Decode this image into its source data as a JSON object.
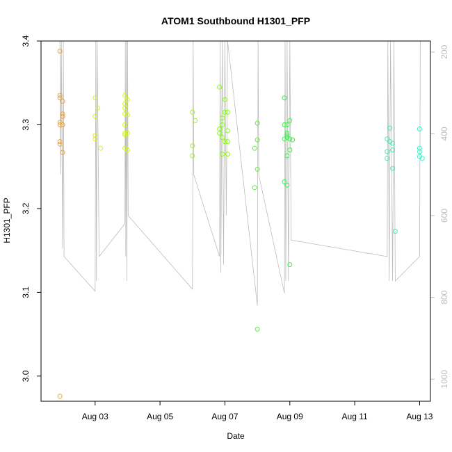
{
  "chart_data": {
    "type": "scatter",
    "title": "ATOM1 Southbound H1301_PFP",
    "xlabel": "Date",
    "ylabel": "H1301_PFP",
    "x_unit": "date",
    "xlim": [
      "2016-08-01T08:00",
      "2016-08-13T08:00"
    ],
    "ylim": [
      2.97,
      3.4
    ],
    "x_ticks": [
      {
        "date": "2016-08-03",
        "label": "Aug 03"
      },
      {
        "date": "2016-08-05",
        "label": "Aug 05"
      },
      {
        "date": "2016-08-07",
        "label": "Aug 07"
      },
      {
        "date": "2016-08-09",
        "label": "Aug 09"
      },
      {
        "date": "2016-08-11",
        "label": "Aug 11"
      },
      {
        "date": "2016-08-13",
        "label": "Aug 13"
      }
    ],
    "y_ticks": [
      3.0,
      3.1,
      3.2,
      3.3,
      3.4
    ],
    "y2_ticks": [
      200,
      400,
      600,
      800,
      1000
    ],
    "y2lim": [
      173,
      1054
    ],
    "grid": false,
    "points": [
      {
        "x": "2016-08-01T22:00",
        "y": 3.388,
        "color": "#e6a23c"
      },
      {
        "x": "2016-08-01T22:00",
        "y": 3.335,
        "color": "#e6a23c"
      },
      {
        "x": "2016-08-01T22:00",
        "y": 3.332,
        "color": "#e6a23c"
      },
      {
        "x": "2016-08-01T22:00",
        "y": 3.303,
        "color": "#e6a23c"
      },
      {
        "x": "2016-08-01T22:00",
        "y": 3.3,
        "color": "#e6a23c"
      },
      {
        "x": "2016-08-01T22:00",
        "y": 3.28,
        "color": "#e6a23c"
      },
      {
        "x": "2016-08-01T22:00",
        "y": 3.277,
        "color": "#e6a23c"
      },
      {
        "x": "2016-08-01T22:00",
        "y": 2.976,
        "color": "#e6a23c"
      },
      {
        "x": "2016-08-02T00:00",
        "y": 3.328,
        "color": "#e6a23c"
      },
      {
        "x": "2016-08-02T00:00",
        "y": 3.313,
        "color": "#e6a23c"
      },
      {
        "x": "2016-08-02T00:00",
        "y": 3.31,
        "color": "#e6a23c"
      },
      {
        "x": "2016-08-02T00:00",
        "y": 3.3,
        "color": "#e6a23c"
      },
      {
        "x": "2016-08-02T00:00",
        "y": 3.267,
        "color": "#e6a23c"
      },
      {
        "x": "2016-08-03T00:00",
        "y": 3.332,
        "color": "#e0ea2a"
      },
      {
        "x": "2016-08-03T02:00",
        "y": 3.32,
        "color": "#e0ea2a"
      },
      {
        "x": "2016-08-03T00:00",
        "y": 3.31,
        "color": "#e0ea2a"
      },
      {
        "x": "2016-08-03T00:00",
        "y": 3.287,
        "color": "#e0ea2a"
      },
      {
        "x": "2016-08-03T00:00",
        "y": 3.283,
        "color": "#e0ea2a"
      },
      {
        "x": "2016-08-03T04:00",
        "y": 3.272,
        "color": "#e0ea2a"
      },
      {
        "x": "2016-08-03T22:00",
        "y": 3.335,
        "color": "#d6f22a"
      },
      {
        "x": "2016-08-03T22:00",
        "y": 3.325,
        "color": "#d6f22a"
      },
      {
        "x": "2016-08-03T22:00",
        "y": 3.32,
        "color": "#d6f22a"
      },
      {
        "x": "2016-08-03T22:00",
        "y": 3.313,
        "color": "#d6f22a"
      },
      {
        "x": "2016-08-03T22:00",
        "y": 3.3,
        "color": "#d6f22a"
      },
      {
        "x": "2016-08-03T22:00",
        "y": 3.29,
        "color": "#d6f22a"
      },
      {
        "x": "2016-08-03T22:00",
        "y": 3.288,
        "color": "#d6f22a"
      },
      {
        "x": "2016-08-03T22:00",
        "y": 3.272,
        "color": "#d6f22a"
      },
      {
        "x": "2016-08-04T00:00",
        "y": 3.33,
        "color": "#d6f22a"
      },
      {
        "x": "2016-08-04T00:00",
        "y": 3.312,
        "color": "#d6f22a"
      },
      {
        "x": "2016-08-04T00:00",
        "y": 3.29,
        "color": "#d6f22a"
      },
      {
        "x": "2016-08-04T00:00",
        "y": 3.27,
        "color": "#d6f22a"
      },
      {
        "x": "2016-08-06T00:00",
        "y": 3.315,
        "color": "#9cf22a"
      },
      {
        "x": "2016-08-06T02:00",
        "y": 3.305,
        "color": "#9cf22a"
      },
      {
        "x": "2016-08-06T00:00",
        "y": 3.275,
        "color": "#9cf22a"
      },
      {
        "x": "2016-08-06T00:00",
        "y": 3.263,
        "color": "#9cf22a"
      },
      {
        "x": "2016-08-06T20:00",
        "y": 3.345,
        "color": "#8cf22a"
      },
      {
        "x": "2016-08-06T22:00",
        "y": 3.308,
        "color": "#8cf22a"
      },
      {
        "x": "2016-08-06T22:00",
        "y": 3.3,
        "color": "#8cf22a"
      },
      {
        "x": "2016-08-06T20:00",
        "y": 3.295,
        "color": "#8cf22a"
      },
      {
        "x": "2016-08-06T20:00",
        "y": 3.29,
        "color": "#8cf22a"
      },
      {
        "x": "2016-08-06T22:00",
        "y": 3.285,
        "color": "#8cf22a"
      },
      {
        "x": "2016-08-06T22:00",
        "y": 3.265,
        "color": "#8cf22a"
      },
      {
        "x": "2016-08-07T00:00",
        "y": 3.33,
        "color": "#8cf22a"
      },
      {
        "x": "2016-08-07T00:00",
        "y": 3.315,
        "color": "#8cf22a"
      },
      {
        "x": "2016-08-07T02:00",
        "y": 3.315,
        "color": "#8cf22a"
      },
      {
        "x": "2016-08-07T00:00",
        "y": 3.28,
        "color": "#8cf22a"
      },
      {
        "x": "2016-08-07T02:00",
        "y": 3.293,
        "color": "#8cf22a"
      },
      {
        "x": "2016-08-07T02:00",
        "y": 3.28,
        "color": "#8cf22a"
      },
      {
        "x": "2016-08-07T02:00",
        "y": 3.265,
        "color": "#8cf22a"
      },
      {
        "x": "2016-08-07T22:00",
        "y": 3.272,
        "color": "#5ef23a"
      },
      {
        "x": "2016-08-08T00:00",
        "y": 3.302,
        "color": "#5ef23a"
      },
      {
        "x": "2016-08-08T00:00",
        "y": 3.282,
        "color": "#5ef23a"
      },
      {
        "x": "2016-08-08T00:00",
        "y": 3.247,
        "color": "#5ef23a"
      },
      {
        "x": "2016-08-07T22:00",
        "y": 3.225,
        "color": "#5ef23a"
      },
      {
        "x": "2016-08-08T00:00",
        "y": 3.056,
        "color": "#5ef23a"
      },
      {
        "x": "2016-08-08T20:00",
        "y": 3.332,
        "color": "#3cf24a"
      },
      {
        "x": "2016-08-08T20:00",
        "y": 3.3,
        "color": "#3cf24a"
      },
      {
        "x": "2016-08-08T22:00",
        "y": 3.3,
        "color": "#3cf24a"
      },
      {
        "x": "2016-08-08T22:00",
        "y": 3.29,
        "color": "#3cf24a"
      },
      {
        "x": "2016-08-08T20:00",
        "y": 3.283,
        "color": "#3cf24a"
      },
      {
        "x": "2016-08-08T22:00",
        "y": 3.288,
        "color": "#3cf24a"
      },
      {
        "x": "2016-08-08T22:00",
        "y": 3.285,
        "color": "#3cf24a"
      },
      {
        "x": "2016-08-09T00:00",
        "y": 3.305,
        "color": "#3cf24a"
      },
      {
        "x": "2016-08-09T00:00",
        "y": 3.283,
        "color": "#3cf24a"
      },
      {
        "x": "2016-08-09T02:00",
        "y": 3.282,
        "color": "#3cf24a"
      },
      {
        "x": "2016-08-09T00:00",
        "y": 3.27,
        "color": "#3cf24a"
      },
      {
        "x": "2016-08-08T22:00",
        "y": 3.263,
        "color": "#3cf24a"
      },
      {
        "x": "2016-08-08T20:00",
        "y": 3.232,
        "color": "#3cf24a"
      },
      {
        "x": "2016-08-08T22:00",
        "y": 3.228,
        "color": "#3cf24a"
      },
      {
        "x": "2016-08-09T00:00",
        "y": 3.133,
        "color": "#3cf24a"
      },
      {
        "x": "2016-08-12T00:00",
        "y": 3.283,
        "color": "#3cf2a6"
      },
      {
        "x": "2016-08-12T02:00",
        "y": 3.296,
        "color": "#3cf2a6"
      },
      {
        "x": "2016-08-12T02:00",
        "y": 3.28,
        "color": "#3cf2a6"
      },
      {
        "x": "2016-08-12T04:00",
        "y": 3.278,
        "color": "#3cf2a6"
      },
      {
        "x": "2016-08-12T00:00",
        "y": 3.268,
        "color": "#3cf2a6"
      },
      {
        "x": "2016-08-12T04:00",
        "y": 3.27,
        "color": "#3cf2a6"
      },
      {
        "x": "2016-08-12T00:00",
        "y": 3.26,
        "color": "#3cf2a6"
      },
      {
        "x": "2016-08-12T04:00",
        "y": 3.248,
        "color": "#3cf2a6"
      },
      {
        "x": "2016-08-12T06:00",
        "y": 3.173,
        "color": "#3cf2a6"
      },
      {
        "x": "2016-08-13T00:00",
        "y": 3.295,
        "color": "#3cf2c8"
      },
      {
        "x": "2016-08-13T00:00",
        "y": 3.272,
        "color": "#3cf2c8"
      },
      {
        "x": "2016-08-13T00:00",
        "y": 3.268,
        "color": "#3cf2c8"
      },
      {
        "x": "2016-08-13T00:00",
        "y": 3.262,
        "color": "#3cf2c8"
      },
      {
        "x": "2016-08-13T02:00",
        "y": 3.26,
        "color": "#3cf2c8"
      }
    ],
    "pressure_trace": {
      "color": "#bdbdbd",
      "points": [
        [
          "2016-08-01T22:00",
          173
        ],
        [
          "2016-08-01T22:30",
          500
        ],
        [
          "2016-08-01T23:00",
          173
        ],
        [
          "2016-08-02T00:00",
          680
        ],
        [
          "2016-08-02T00:30",
          173
        ],
        [
          "2016-08-02T01:00",
          700
        ],
        [
          "2016-08-03T00:00",
          785
        ],
        [
          "2016-08-03T00:30",
          173
        ],
        [
          "2016-08-03T01:00",
          760
        ],
        [
          "2016-08-03T01:30",
          173
        ],
        [
          "2016-08-03T03:00",
          700
        ],
        [
          "2016-08-03T22:00",
          620
        ],
        [
          "2016-08-03T22:20",
          173
        ],
        [
          "2016-08-03T22:40",
          700
        ],
        [
          "2016-08-03T23:00",
          173
        ],
        [
          "2016-08-03T23:30",
          760
        ],
        [
          "2016-08-04T00:00",
          173
        ],
        [
          "2016-08-04T00:30",
          600
        ],
        [
          "2016-08-06T00:00",
          780
        ],
        [
          "2016-08-06T00:30",
          173
        ],
        [
          "2016-08-06T01:00",
          500
        ],
        [
          "2016-08-06T20:00",
          700
        ],
        [
          "2016-08-06T20:30",
          173
        ],
        [
          "2016-08-06T21:00",
          740
        ],
        [
          "2016-08-06T22:00",
          173
        ],
        [
          "2016-08-06T23:00",
          720
        ],
        [
          "2016-08-07T00:00",
          173
        ],
        [
          "2016-08-07T01:00",
          600
        ],
        [
          "2016-08-07T02:00",
          173
        ],
        [
          "2016-08-08T00:00",
          820
        ],
        [
          "2016-08-08T00:30",
          173
        ],
        [
          "2016-08-08T01:00",
          500
        ],
        [
          "2016-08-08T20:00",
          790
        ],
        [
          "2016-08-08T20:30",
          173
        ],
        [
          "2016-08-08T21:00",
          760
        ],
        [
          "2016-08-08T22:00",
          173
        ],
        [
          "2016-08-08T23:00",
          760
        ],
        [
          "2016-08-09T00:00",
          173
        ],
        [
          "2016-08-09T01:00",
          660
        ],
        [
          "2016-08-12T00:00",
          700
        ],
        [
          "2016-08-12T00:30",
          173
        ],
        [
          "2016-08-12T01:30",
          760
        ],
        [
          "2016-08-12T02:30",
          173
        ],
        [
          "2016-08-12T04:00",
          760
        ],
        [
          "2016-08-12T05:00",
          173
        ],
        [
          "2016-08-12T06:00",
          760
        ],
        [
          "2016-08-13T00:00",
          700
        ],
        [
          "2016-08-13T00:30",
          173
        ]
      ]
    }
  }
}
